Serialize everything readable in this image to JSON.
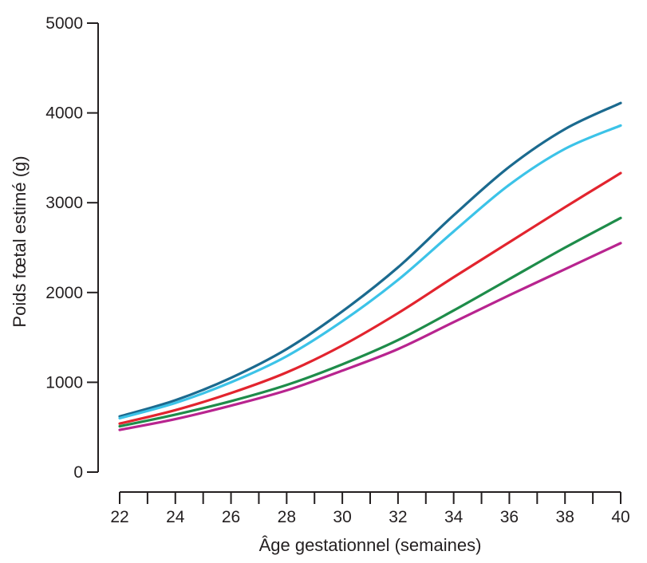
{
  "chart_data": {
    "type": "line",
    "title": "",
    "xlabel": "Âge gestationnel (semaines)",
    "ylabel": "Poids fœtal estimé (g)",
    "xlim": [
      22,
      40
    ],
    "ylim": [
      0,
      5000
    ],
    "x_ticks": [
      22,
      24,
      26,
      28,
      30,
      32,
      34,
      36,
      38,
      40
    ],
    "x_minor_ticks": [
      22,
      23,
      24,
      25,
      26,
      27,
      28,
      29,
      30,
      31,
      32,
      33,
      34,
      35,
      36,
      37,
      38,
      39,
      40
    ],
    "y_ticks": [
      0,
      1000,
      2000,
      3000,
      4000,
      5000
    ],
    "grid": false,
    "legend": "none",
    "x": [
      22,
      24,
      26,
      28,
      30,
      32,
      34,
      36,
      38,
      40
    ],
    "series": [
      {
        "color": "#1b6a8f",
        "values": [
          620,
          800,
          1050,
          1370,
          1790,
          2280,
          2860,
          3400,
          3820,
          4110
        ]
      },
      {
        "color": "#3cc3e8",
        "values": [
          600,
          770,
          1000,
          1290,
          1680,
          2140,
          2680,
          3200,
          3600,
          3860
        ]
      },
      {
        "color": "#e2242e",
        "values": [
          540,
          690,
          880,
          1110,
          1410,
          1770,
          2170,
          2560,
          2950,
          3330
        ]
      },
      {
        "color": "#1e8c4a",
        "values": [
          510,
          640,
          790,
          970,
          1200,
          1470,
          1800,
          2150,
          2500,
          2830
        ]
      },
      {
        "color": "#b8248f",
        "values": [
          470,
          590,
          740,
          910,
          1130,
          1370,
          1670,
          1970,
          2260,
          2550
        ]
      }
    ]
  }
}
